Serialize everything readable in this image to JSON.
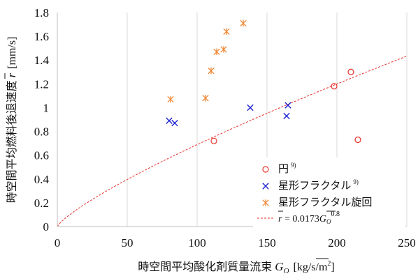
{
  "chart_data": {
    "type": "scatter",
    "xlabel_text": "時空間平均酸化剤質量流束",
    "xlabel_symbol": "G",
    "xlabel_symbol_sub": "O",
    "xlabel_unit": "[kg/s/m",
    "xlabel_unit_sup": "2",
    "xlabel_unit_end": "]",
    "ylabel_text": "時空間平均燃料後退速度",
    "ylabel_symbol": "r",
    "ylabel_unit": "[mm/s]",
    "xlim": [
      0,
      250
    ],
    "ylim": [
      0,
      1.8
    ],
    "xticks": [
      "0",
      "50",
      "100",
      "150",
      "200",
      "250"
    ],
    "yticks": [
      "0",
      "0.2",
      "0.4",
      "0.6",
      "0.8",
      "1",
      "1.2",
      "1.4",
      "1.6",
      "1.8"
    ],
    "grid": "vertical",
    "legend_position": "lower-right",
    "series": [
      {
        "name": "円",
        "name_sup": "9)",
        "marker": "circle",
        "color": "#e8302a",
        "x": [
          112,
          198,
          210,
          215
        ],
        "y": [
          0.72,
          1.18,
          1.3,
          0.73
        ]
      },
      {
        "name": "星形フラクタル",
        "name_sup": "9)",
        "marker": "x",
        "color": "#1d22d4",
        "x": [
          80,
          84,
          138,
          164,
          165
        ],
        "y": [
          0.89,
          0.87,
          1.0,
          0.93,
          1.02
        ]
      },
      {
        "name": "星形フラクタル旋回",
        "marker": "asterisk",
        "color": "#ef8a3a",
        "x": [
          81,
          106,
          110,
          114,
          119,
          121,
          133
        ],
        "y": [
          1.07,
          1.08,
          1.31,
          1.47,
          1.49,
          1.64,
          1.71
        ]
      },
      {
        "name": "r̄ = 0.0173G_O^0.8",
        "legend_lhs": "r",
        "legend_eq": " = 0.0173",
        "legend_g": "G",
        "legend_g_sub": "O",
        "legend_exp": "0.8",
        "type": "fit-line",
        "color": "#e8302a",
        "coef": 0.0173,
        "exponent": 0.8
      }
    ]
  }
}
